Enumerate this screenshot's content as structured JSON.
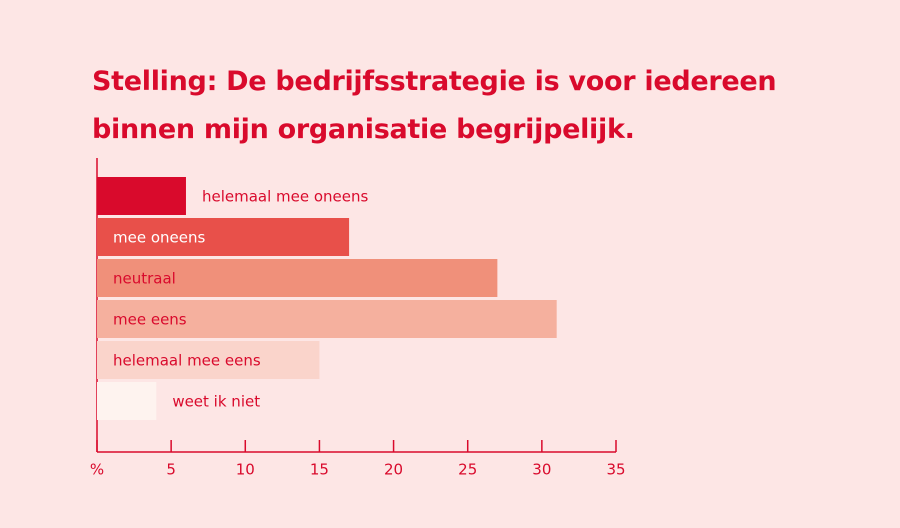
{
  "chart_data": {
    "type": "barh",
    "title": "Stelling: De bedrijfsstrategie is voor iedereen binnen mijn organisatie begrijpelijk.",
    "categories": [
      "helemaal mee oneens",
      "mee oneens",
      "neutraal",
      "mee eens",
      "helemaal mee eens",
      "weet ik niet"
    ],
    "values": [
      6,
      17,
      27,
      31,
      15,
      4
    ],
    "colors": [
      "#d90a2c",
      "#e8504a",
      "#f0907a",
      "#f5b09e",
      "#fad4cb",
      "#fef3ef"
    ],
    "label_colors": [
      "#d90a2c",
      "#ffffff",
      "#d90a2c",
      "#d90a2c",
      "#d90a2c",
      "#d90a2c"
    ],
    "xlim": [
      0,
      35
    ],
    "xticks": [
      {
        "value": 0,
        "label": "%"
      },
      5,
      10,
      15,
      20,
      25,
      30,
      35
    ]
  }
}
